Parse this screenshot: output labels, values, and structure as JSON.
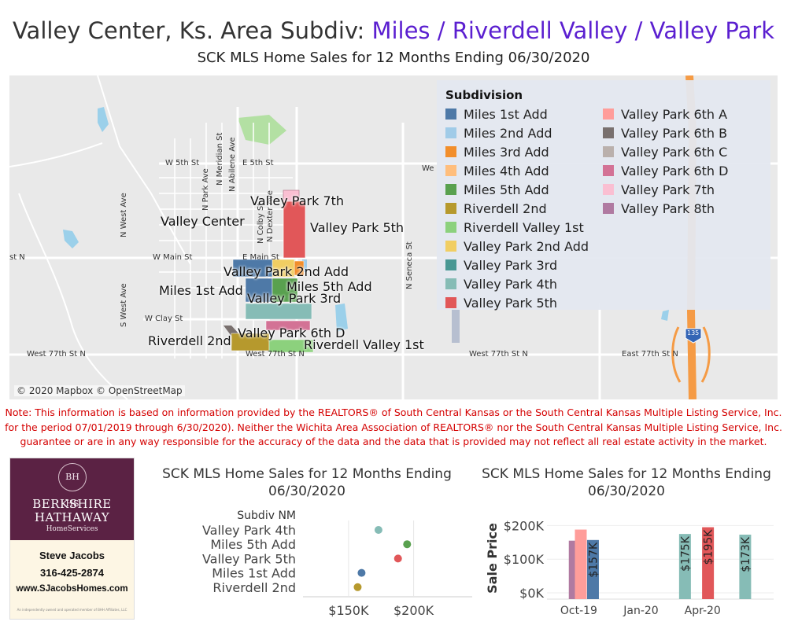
{
  "header": {
    "title_prefix": "Valley Center, Ks. Area Subdiv: ",
    "title_highlight": "Miles / Riverdell Valley / Valley Park",
    "subtitle": "SCK MLS Home Sales for 12 Months Ending 06/30/2020"
  },
  "map": {
    "city_label": "Valley Center",
    "attribution": "© 2020 Mapbox © OpenStreetMap",
    "highway_shield": "135",
    "street_labels": {
      "w5th": "W 5th St",
      "e5th": "E 5th St",
      "e5th_cut": "We",
      "wmain": "W Main St",
      "emain": "E Main St",
      "stn": "st N",
      "wclay": "W Clay St",
      "w77_left": "West 77th St N",
      "w77_mid": "West 77th St N",
      "w77_right": "West 77th St N",
      "e77": "East 77th St N",
      "nmeridian": "N Meridian St",
      "nabilene": "N Abilene Ave",
      "npark": "N Park Ave",
      "ncolby": "N Colby St",
      "ndexter": "N Dexter Ave",
      "nwest": "N West Ave",
      "swest": "S West Ave",
      "nseneca": "N Seneca St"
    },
    "subdivision_labels": {
      "vp7": "Valley Park 7th",
      "vp5": "Valley Park 5th",
      "vp2": "Valley Park 2nd Add",
      "m5": "Miles 5th Add",
      "m1": "Miles 1st Add",
      "vp3": "Valley Park 3rd",
      "rd2": "Riverdell 2nd",
      "vp6d": "Valley Park 6th D",
      "rv1": "Riverdell Valley 1st"
    }
  },
  "legend": {
    "title": "Subdivision",
    "col1": [
      {
        "label": "Miles 1st Add",
        "color": "#4e79a7"
      },
      {
        "label": "Miles 2nd Add",
        "color": "#a0cbe8"
      },
      {
        "label": "Miles 3rd Add",
        "color": "#f28e2b"
      },
      {
        "label": "Miles 4th Add",
        "color": "#ffbe7d"
      },
      {
        "label": "Miles 5th Add",
        "color": "#59a14f"
      },
      {
        "label": "Riverdell 2nd",
        "color": "#b6992d"
      },
      {
        "label": "Riverdell Valley 1st",
        "color": "#8cd17d"
      },
      {
        "label": "Valley Park 2nd Add",
        "color": "#f1ce63"
      },
      {
        "label": "Valley Park 3rd",
        "color": "#499894"
      },
      {
        "label": "Valley Park 4th",
        "color": "#86bcb6"
      },
      {
        "label": "Valley Park 5th",
        "color": "#e15759"
      }
    ],
    "col2": [
      {
        "label": "Valley Park 6th A",
        "color": "#ff9d9a"
      },
      {
        "label": "Valley Park 6th B",
        "color": "#79706e"
      },
      {
        "label": "Valley Park 6th C",
        "color": "#bab0ac"
      },
      {
        "label": "Valley Park 6th D",
        "color": "#d37295"
      },
      {
        "label": "Valley Park 7th",
        "color": "#fabfd2"
      },
      {
        "label": "Valley Park 8th",
        "color": "#b07aa1"
      }
    ]
  },
  "note": {
    "line1": "Note: This information is based on information provided by the REALTORS® of South Central Kansas or the South Central Kansas Multiple Listing Service, Inc.",
    "line2": "for the period 07/01/2019 through 6/30/2020). Neither the Wichita Area Association of REALTORS® nor the South Central Kansas Multiple Listing Service, Inc.",
    "line3": "guarantee or are in any way responsible for the accuracy of the data and the data that is provided may not reflect all real estate activity in the market."
  },
  "agent_card": {
    "badge": "BH HS",
    "brand_line1": "BERKSHIRE",
    "brand_line2": "HATHAWAY",
    "brand_sub": "HomeServices",
    "name": "Steve Jacobs",
    "phone": "316-425-2874",
    "website": "www.SJacobsHomes.com",
    "fineprint": "An independently owned and operated member of BHH Affiliates, LLC"
  },
  "chart_data": [
    {
      "type": "scatter",
      "title_line1": "SCK MLS Home Sales for 12 Months Ending",
      "title_line2": "06/30/2020",
      "row_header": "Subdiv NM",
      "categories": [
        "Valley Park 4th",
        "Miles 5th Add",
        "Valley Park 5th",
        "Miles 1st Add",
        "Riverdell 2nd"
      ],
      "values": [
        173000,
        195000,
        188000,
        160000,
        157000
      ],
      "colors": [
        "#86bcb6",
        "#59a14f",
        "#e15759",
        "#4e79a7",
        "#b6992d"
      ],
      "x_ticks": [
        {
          "value": 150000,
          "label": "$150K"
        },
        {
          "value": 200000,
          "label": "$200K"
        }
      ],
      "xlim": [
        115000,
        245000
      ]
    },
    {
      "type": "bar",
      "title_line1": "SCK MLS Home Sales for 12 Months Ending",
      "title_line2": "06/30/2020",
      "ylabel": "Sale Price",
      "ylim": [
        0,
        215000
      ],
      "y_ticks": [
        {
          "value": 0,
          "label": "$0K"
        },
        {
          "value": 100000,
          "label": "$100K"
        },
        {
          "value": 200000,
          "label": "$200K"
        }
      ],
      "x_ticks": [
        {
          "date": "2019-10",
          "label": "Oct-19"
        },
        {
          "date": "2020-01",
          "label": "Jan-20"
        },
        {
          "date": "2020-04",
          "label": "Apr-20"
        }
      ],
      "xlim": [
        "2019-08-15",
        "2020-07-15"
      ],
      "bars": [
        {
          "date": "2019-09-25",
          "value": 155000,
          "color": "#b07aa1",
          "label": ""
        },
        {
          "date": "2019-10-04",
          "value": 188000,
          "color": "#ff9d9a",
          "label": ""
        },
        {
          "date": "2019-10-22",
          "value": 157000,
          "color": "#4e79a7",
          "label": "$157K"
        },
        {
          "date": "2020-03-06",
          "value": 175000,
          "color": "#86bcb6",
          "label": "$175K"
        },
        {
          "date": "2020-04-09",
          "value": 195000,
          "color": "#e15759",
          "label": "$195K"
        },
        {
          "date": "2020-06-03",
          "value": 173000,
          "color": "#86bcb6",
          "label": "$173K"
        }
      ]
    }
  ]
}
